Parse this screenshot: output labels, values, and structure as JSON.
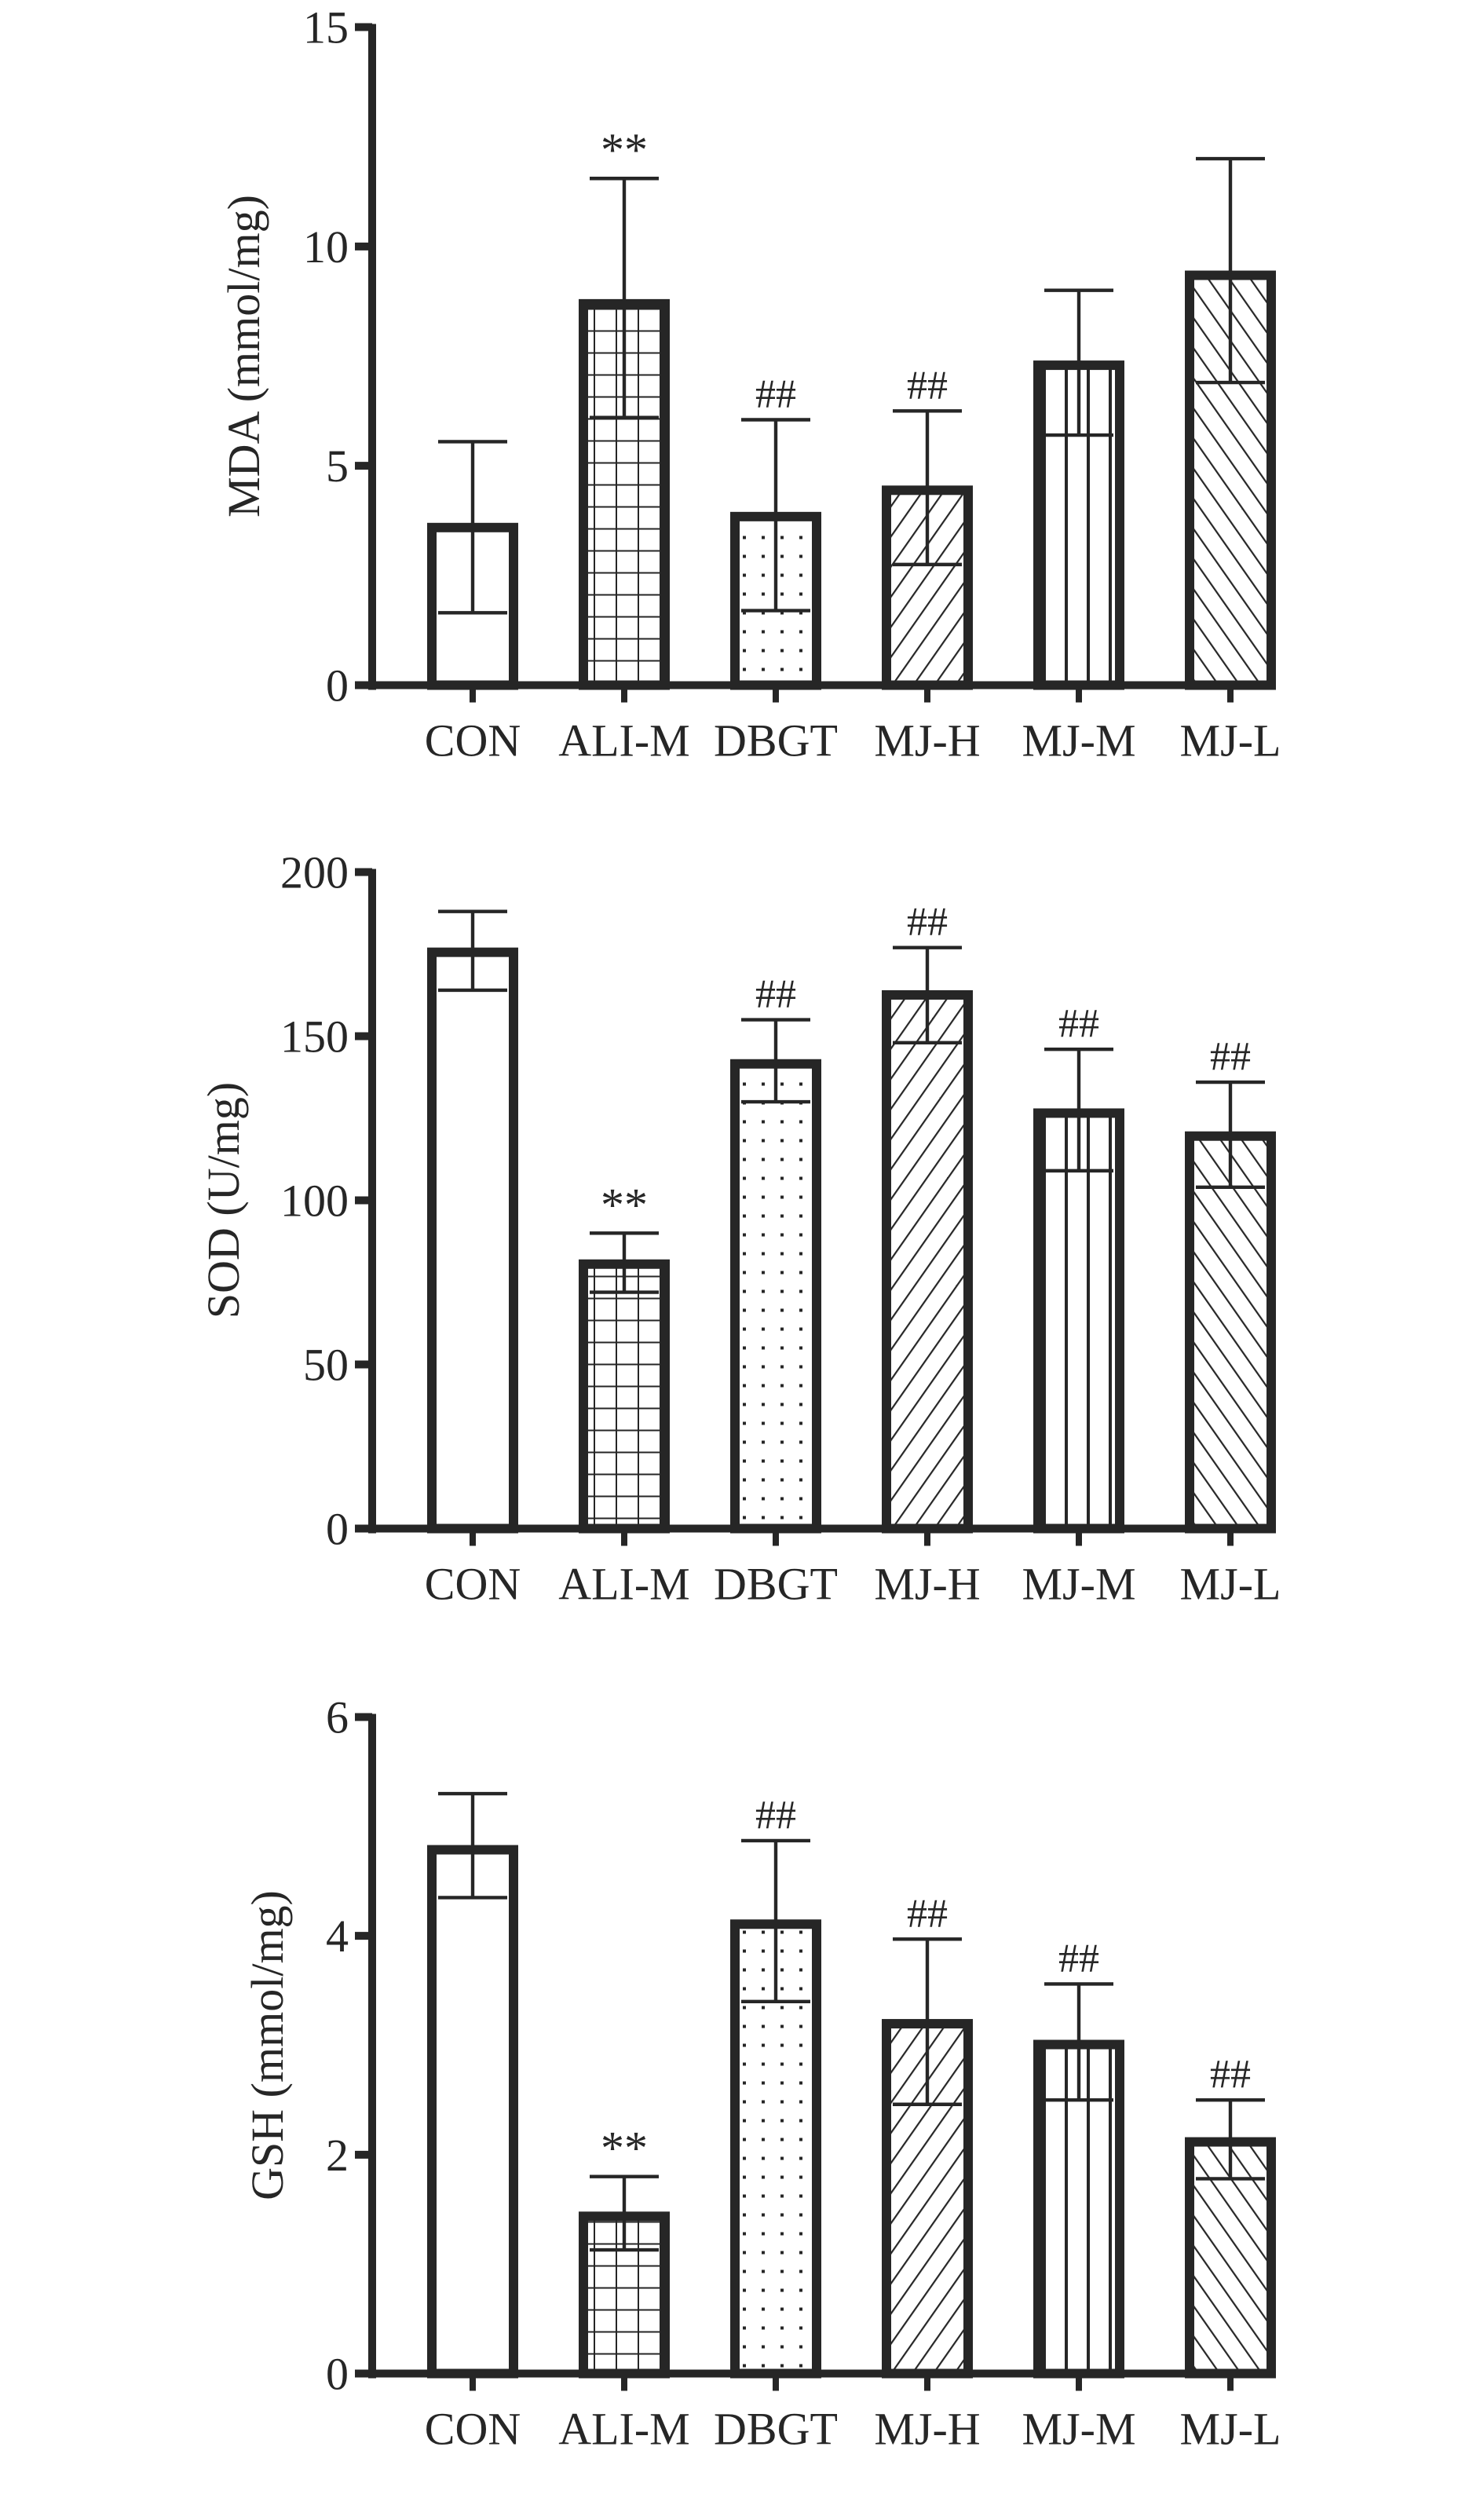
{
  "chart_data": [
    {
      "type": "bar",
      "title": "",
      "ylabel": "MDA (mmol/mg)",
      "xlabel": "",
      "ylim": [
        0,
        15
      ],
      "yticks": [
        0,
        5,
        10,
        15
      ],
      "categories": [
        "CON",
        "ALI-M",
        "DBGT",
        "MJ-H",
        "MJ-M",
        "MJ-L"
      ],
      "values": [
        3.7,
        8.8,
        3.95,
        4.55,
        7.4,
        9.45
      ],
      "error_low": [
        1.65,
        6.1,
        1.7,
        2.75,
        5.7,
        6.9
      ],
      "error_high": [
        5.55,
        11.55,
        6.05,
        6.25,
        9.0,
        12.0
      ],
      "annotations": [
        "",
        "**",
        "##",
        "##",
        "",
        ""
      ],
      "grid": false
    },
    {
      "type": "bar",
      "title": "",
      "ylabel": "SOD (U/mg)",
      "xlabel": "",
      "ylim": [
        0,
        200
      ],
      "yticks": [
        0,
        50,
        100,
        150,
        200
      ],
      "categories": [
        "CON",
        "ALI-M",
        "DBGT",
        "MJ-H",
        "MJ-M",
        "MJ-L"
      ],
      "values": [
        177,
        82,
        143,
        164,
        128,
        121
      ],
      "error_low": [
        164,
        72,
        130,
        148,
        109,
        104
      ],
      "error_high": [
        188,
        90,
        155,
        177,
        146,
        136
      ],
      "annotations": [
        "",
        "**",
        "##",
        "##",
        "##",
        "##"
      ],
      "grid": false
    },
    {
      "type": "bar",
      "title": "",
      "ylabel": "GSH (mmol/mg)",
      "xlabel": "",
      "ylim": [
        0,
        6
      ],
      "yticks": [
        0,
        2,
        4,
        6
      ],
      "categories": [
        "CON",
        "ALI-M",
        "DBGT",
        "MJ-H",
        "MJ-M",
        "MJ-L"
      ],
      "values": [
        4.83,
        1.48,
        4.15,
        3.24,
        3.05,
        2.16
      ],
      "error_low": [
        4.35,
        1.13,
        3.4,
        2.46,
        2.5,
        1.78
      ],
      "error_high": [
        5.3,
        1.8,
        4.87,
        3.97,
        3.56,
        2.5
      ],
      "annotations": [
        "",
        "**",
        "##",
        "##",
        "##",
        "##"
      ],
      "grid": false
    }
  ],
  "patterns": [
    "none",
    "grid",
    "dots",
    "diag-right",
    "vertical",
    "diag-left"
  ],
  "colors": {
    "ink": "#262626",
    "background": "#ffffff"
  }
}
